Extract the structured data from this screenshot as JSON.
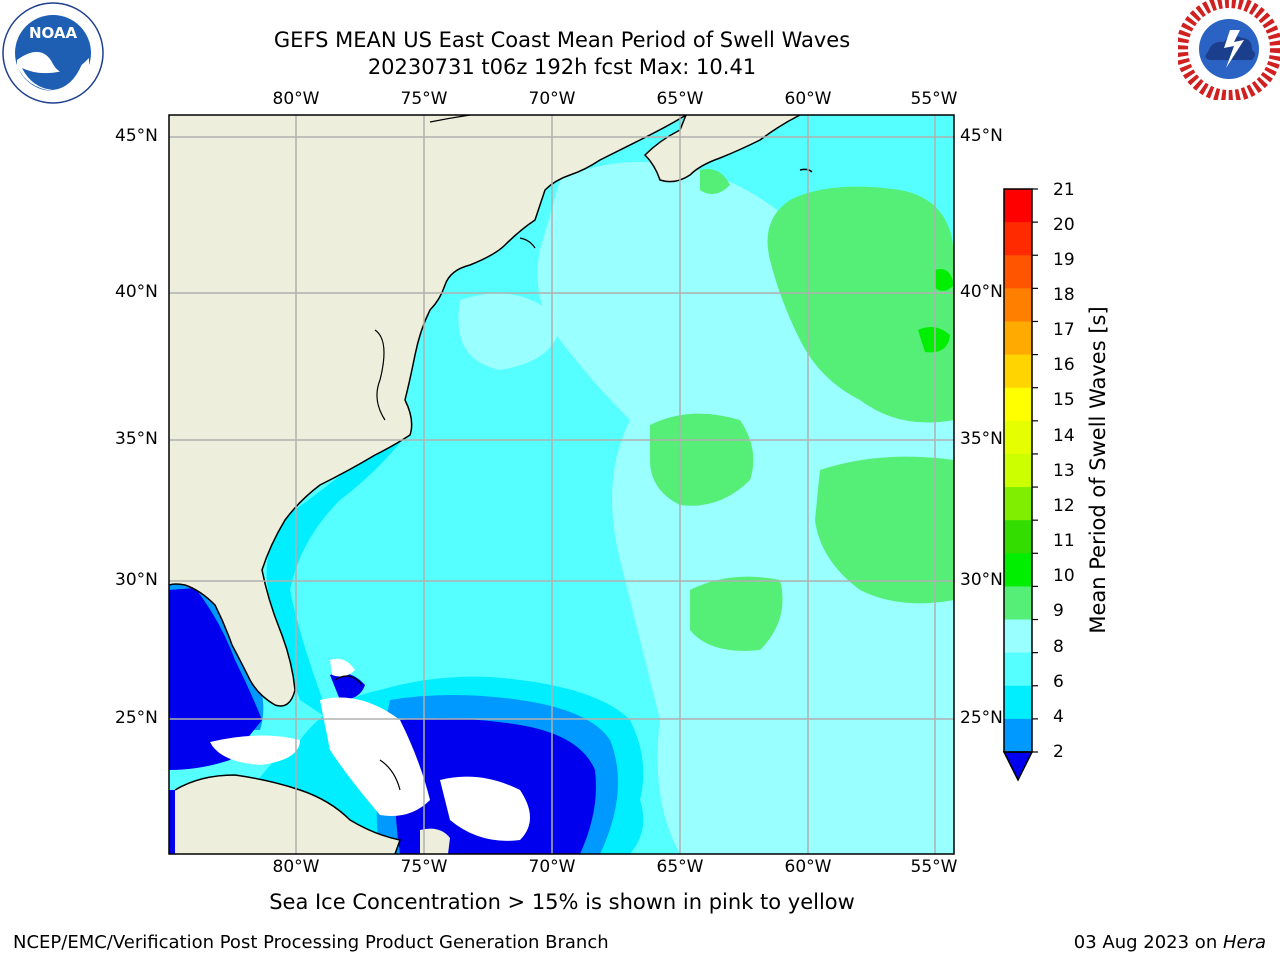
{
  "title": {
    "line1": "GEFS MEAN US East Coast Mean Period of Swell Waves",
    "line2": "20230731 t06z 192h fcst   Max: 10.41"
  },
  "logos": {
    "left": {
      "icon": "noaa-logo-icon",
      "text": "NOAA"
    },
    "right": {
      "icon": "nws-logo-icon"
    }
  },
  "map": {
    "lon_labels": [
      "80°W",
      "75°W",
      "70°W",
      "65°W",
      "60°W",
      "55°W"
    ],
    "lat_labels": [
      "45°N",
      "40°N",
      "35°N",
      "30°N",
      "25°N"
    ],
    "colors": {
      "land": "#eeeedd",
      "coast": "#000000",
      "grid": "#b0b0b0"
    }
  },
  "colorbar": {
    "title": "Mean Period of Swell Waves [s]",
    "ticks": [
      "21",
      "20",
      "19",
      "18",
      "17",
      "16",
      "15",
      "14",
      "13",
      "12",
      "11",
      "10",
      "9",
      "8",
      "6",
      "4",
      "2"
    ],
    "colors": [
      "#ff0000",
      "#ff2a00",
      "#ff5500",
      "#ff8000",
      "#ffaa00",
      "#ffd400",
      "#ffff00",
      "#e6ff00",
      "#ccff00",
      "#80ee00",
      "#33dd00",
      "#00ee00",
      "#55ee77",
      "#99ffff",
      "#55ffff",
      "#00eeff",
      "#0099ff",
      "#0000ee"
    ]
  },
  "footer": {
    "note": "Sea Ice Concentration > 15% is shown in pink to yellow",
    "credit": "NCEP/EMC/Verification Post Processing Product Generation Branch",
    "date": "03 Aug 2023 on ",
    "machine": "Hera"
  }
}
